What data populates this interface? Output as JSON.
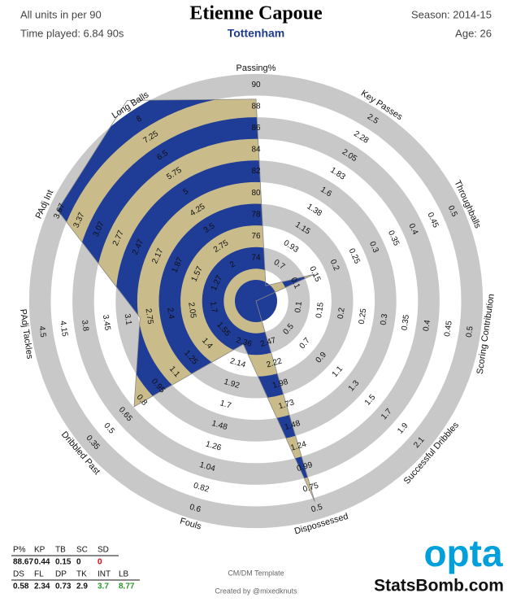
{
  "chart_data": {
    "type": "radar",
    "title": "Etienne Capoue",
    "subtitle": "Tottenham",
    "header_left": [
      "All units in per 90",
      "Time played: 6.84 90s"
    ],
    "header_right": [
      "Season: 2014-15",
      "Age: 26"
    ],
    "footer": [
      "CM/DM Template",
      "Created by @mixedknuts",
      "opta",
      "StatsBomb.com"
    ],
    "axes": [
      {
        "name": "Passing%",
        "abbr": "P%",
        "ticks": [
          74,
          76,
          78,
          80,
          82,
          84,
          86,
          88,
          90
        ]
      },
      {
        "name": "Key Passes",
        "abbr": "KP",
        "ticks": [
          0.7,
          0.93,
          1.15,
          1.38,
          1.6,
          1.83,
          2.05,
          2.28,
          2.5
        ]
      },
      {
        "name": "Throughballs",
        "abbr": "TB",
        "ticks": [
          0.1,
          0.15,
          0.2,
          0.25,
          0.3,
          0.35,
          0.4,
          0.45,
          0.5
        ]
      },
      {
        "name": "Scoring Contribution",
        "abbr": "SC",
        "ticks": [
          0.1,
          0.15,
          0.2,
          0.25,
          0.3,
          0.35,
          0.4,
          0.45,
          0.5
        ]
      },
      {
        "name": "Successful Dribbles",
        "abbr": "SD",
        "ticks": [
          0.5,
          0.7,
          0.9,
          1.1,
          1.3,
          1.5,
          1.7,
          1.9,
          2.1
        ]
      },
      {
        "name": "Dispossessed",
        "abbr": "DS",
        "ticks": [
          2.47,
          2.22,
          1.98,
          1.73,
          1.48,
          1.24,
          0.99,
          0.75,
          0.5
        ]
      },
      {
        "name": "Fouls",
        "abbr": "FL",
        "ticks": [
          2.36,
          2.14,
          1.92,
          1.7,
          1.48,
          1.26,
          1.04,
          0.82,
          0.6
        ]
      },
      {
        "name": "Dribbled Past",
        "abbr": "DP",
        "ticks": [
          1.55,
          1.4,
          1.25,
          1.1,
          0.95,
          0.8,
          0.65,
          0.5,
          0.35
        ]
      },
      {
        "name": "PAdj Tackles",
        "abbr": "TK",
        "ticks": [
          1.7,
          2.05,
          2.4,
          2.75,
          3.1,
          3.45,
          3.8,
          4.15,
          4.5
        ]
      },
      {
        "name": "PAdj Int",
        "abbr": "INT",
        "ticks": [
          1.27,
          1.57,
          1.87,
          2.17,
          2.47,
          2.77,
          3.07,
          3.37,
          3.67
        ]
      },
      {
        "name": "Long Balls",
        "abbr": "LB",
        "ticks": [
          2,
          2.75,
          3.5,
          4.25,
          5,
          5.75,
          6.5,
          7.25,
          8
        ]
      }
    ],
    "series": [
      {
        "values": [
          88.67,
          0.44,
          0.15,
          0,
          0,
          0.58,
          2.34,
          0.73,
          2.9,
          3.7,
          8.77
        ],
        "label_colors": [
          "#111",
          "#111",
          "#111",
          "#111",
          "#e00000",
          "#111",
          "#111",
          "#111",
          "#111",
          "#2a9a2a",
          "#2a9a2a"
        ]
      }
    ],
    "colors": {
      "fill_a": "#1f3c96",
      "fill_b": "#c9bb8a",
      "ring": "#c8c8c8"
    }
  }
}
